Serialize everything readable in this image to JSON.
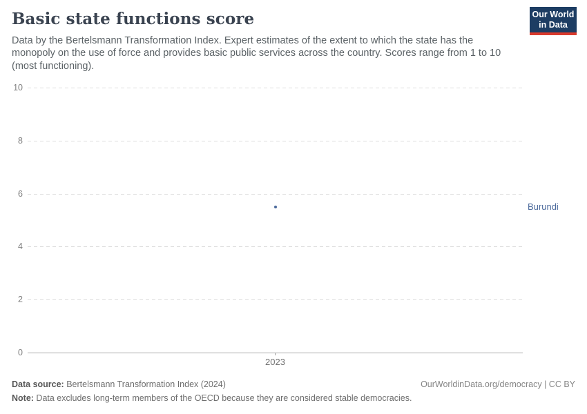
{
  "header": {
    "title": "Basic state functions score",
    "subtitle": "Data by the Bertelsmann Transformation Index. Expert estimates of the extent to which the state has the monopoly on the use of force and provides basic public services across the country. Scores range from 1 to 10 (most functioning).",
    "logo": {
      "line1": "Our World",
      "line2": "in Data",
      "bg_color": "#1d3d63",
      "accent_color": "#d93a2d"
    }
  },
  "chart_data": {
    "type": "scatter",
    "title": "Basic state functions score",
    "x": [
      2023
    ],
    "series": [
      {
        "name": "Burundi",
        "values": [
          5.5
        ],
        "color": "#4c6a9c"
      }
    ],
    "ylim": [
      0,
      10
    ],
    "yticks": [
      0,
      2,
      4,
      6,
      8,
      10
    ],
    "xticks": [
      "2023"
    ],
    "grid": "horizontal-dashed",
    "legend_position": "right-of-point",
    "xlabel": "",
    "ylabel": ""
  },
  "footer": {
    "source_label": "Data source:",
    "source_text": " Bertelsmann Transformation Index (2024)",
    "rights": "OurWorldinData.org/democracy | CC BY",
    "note_label": "Note:",
    "note_text": " Data excludes long-term members of the OECD because they are considered stable democracies."
  }
}
